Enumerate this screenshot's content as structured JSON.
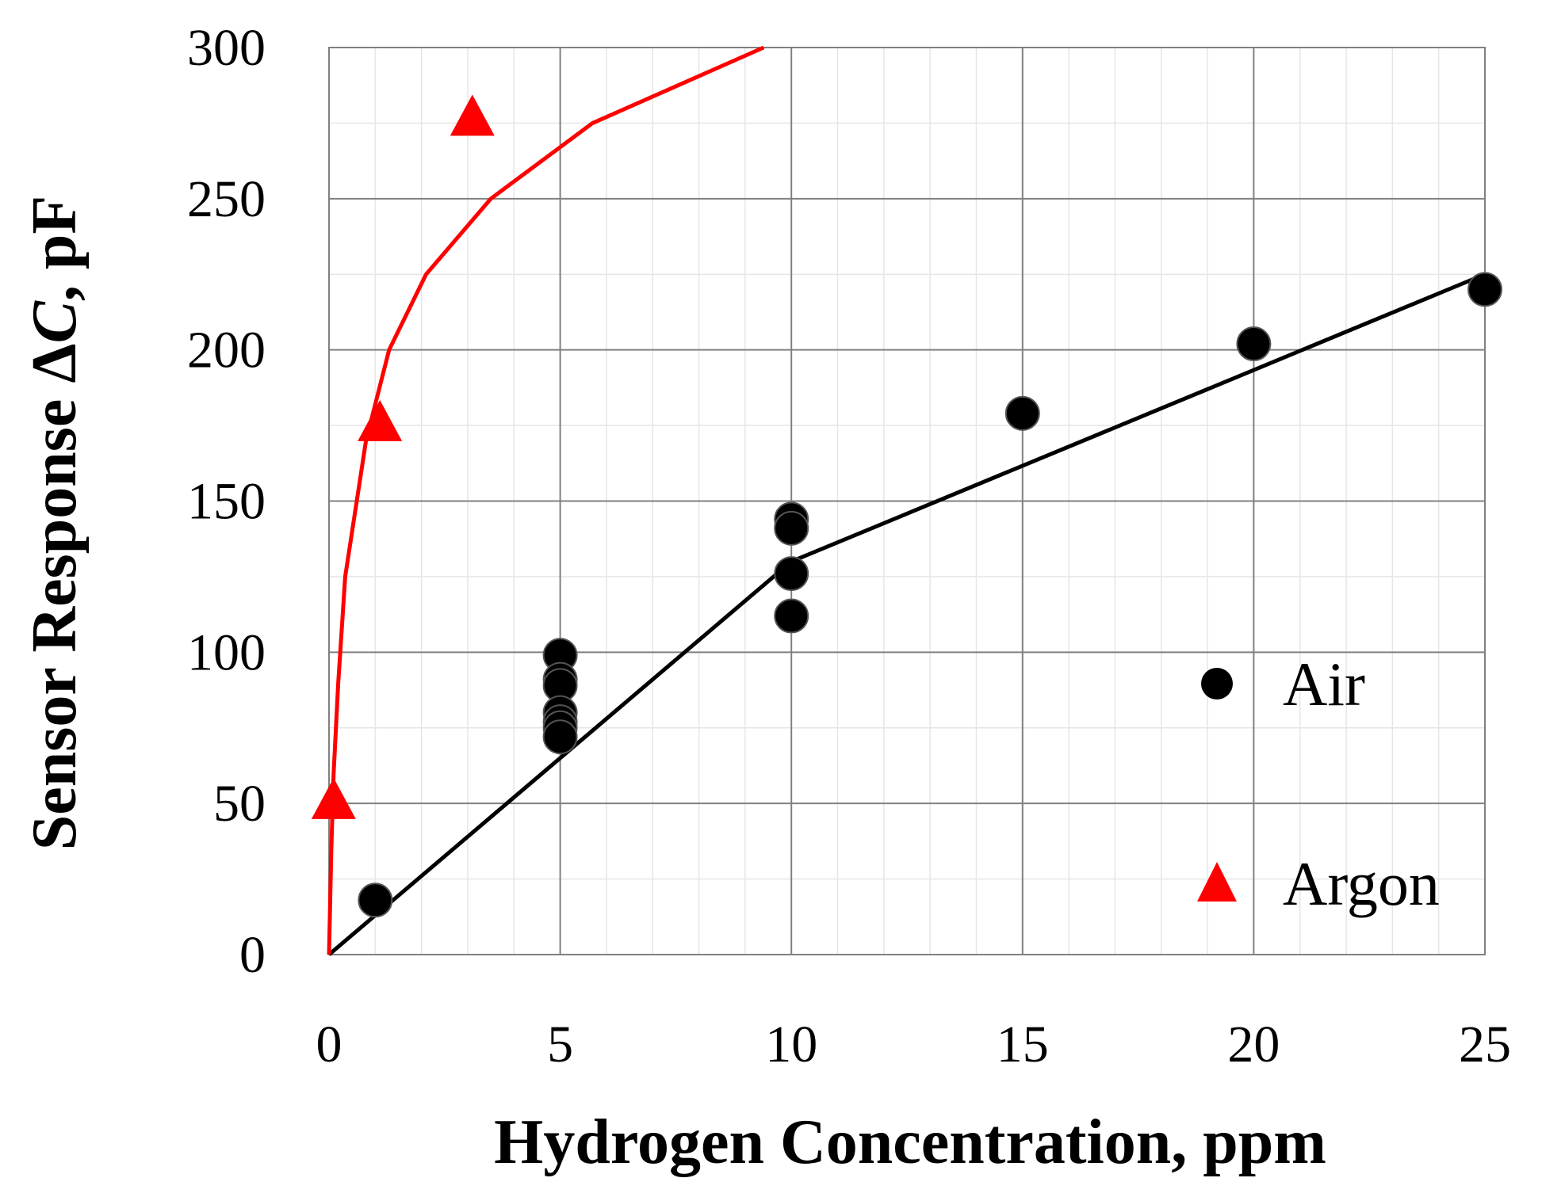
{
  "chart_data": {
    "type": "scatter",
    "title": "",
    "xlabel": "Hydrogen Concentration, ppm",
    "ylabel_prefix": "Sensor Response Δ",
    "ylabel_italic": "C",
    "ylabel_suffix": ", pF",
    "xlim": [
      0,
      25
    ],
    "ylim": [
      0,
      300
    ],
    "x_ticks": [
      0,
      5,
      10,
      15,
      20,
      25
    ],
    "y_ticks": [
      0,
      50,
      100,
      150,
      200,
      250,
      300
    ],
    "x_tick_labels": [
      "0",
      "5",
      "10",
      "15",
      "20",
      "25"
    ],
    "y_tick_labels": [
      "0",
      "50",
      "100",
      "150",
      "200",
      "250",
      "300"
    ],
    "major_x_grid": [
      0,
      5,
      10,
      15,
      20,
      25
    ],
    "major_y_grid": [
      0,
      50,
      100,
      150,
      200,
      250,
      300
    ],
    "minor_x_step": 1,
    "minor_y_step": 25,
    "grid": true,
    "legend_position": "right",
    "series": [
      {
        "name": "Air",
        "marker": "circle",
        "color": "#000000",
        "points": [
          {
            "x": 1,
            "y": 18
          },
          {
            "x": 5,
            "y": 99
          },
          {
            "x": 5,
            "y": 91
          },
          {
            "x": 5,
            "y": 89
          },
          {
            "x": 5,
            "y": 80
          },
          {
            "x": 5,
            "y": 77
          },
          {
            "x": 5,
            "y": 75
          },
          {
            "x": 5,
            "y": 72
          },
          {
            "x": 10,
            "y": 144
          },
          {
            "x": 10,
            "y": 141
          },
          {
            "x": 10,
            "y": 126
          },
          {
            "x": 10,
            "y": 112
          },
          {
            "x": 15,
            "y": 179
          },
          {
            "x": 20,
            "y": 202
          },
          {
            "x": 25,
            "y": 220
          }
        ]
      },
      {
        "name": "Argon",
        "marker": "triangle",
        "color": "#ff0000",
        "points": [
          {
            "x": 0.1,
            "y": 50
          },
          {
            "x": 1.1,
            "y": 175
          },
          {
            "x": 3.1,
            "y": 276
          }
        ]
      }
    ],
    "fit_lines": [
      {
        "name": "Air fit",
        "color": "#000000",
        "points": [
          [
            0,
            0
          ],
          [
            10,
            130
          ],
          [
            25,
            225
          ]
        ]
      },
      {
        "name": "Argon fit",
        "color": "#ff0000",
        "points": [
          [
            0,
            0
          ],
          [
            0.05,
            35
          ],
          [
            0.1,
            60
          ],
          [
            0.2,
            90
          ],
          [
            0.35,
            125
          ],
          [
            0.6,
            150
          ],
          [
            0.8,
            170
          ],
          [
            1.3,
            200
          ],
          [
            2.1,
            225
          ],
          [
            3.5,
            250
          ],
          [
            5.7,
            275
          ],
          [
            9.4,
            300
          ]
        ]
      }
    ]
  }
}
